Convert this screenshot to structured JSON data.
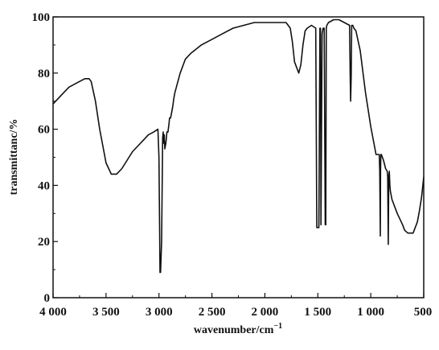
{
  "chart_data": {
    "type": "line",
    "title": "",
    "xlabel": "wavenumber/cm",
    "xlabel_superscript": "−1",
    "ylabel": "transmittanc/%",
    "xlim": [
      4000,
      500
    ],
    "ylim": [
      0,
      100
    ],
    "x_reversed": true,
    "grid": false,
    "legend": "none",
    "x_ticks": [
      4000,
      3500,
      3000,
      2500,
      2000,
      1500,
      1000,
      500
    ],
    "x_tick_labels": [
      "4 000",
      "3 500",
      "3 000",
      "2 500",
      "2 000",
      "1 500",
      "1 000",
      "500"
    ],
    "y_ticks": [
      0,
      20,
      40,
      60,
      80,
      100
    ],
    "y_tick_labels": [
      "0",
      "20",
      "40",
      "60",
      "80",
      "100"
    ],
    "series": [
      {
        "color": "#111111",
        "x": [
          4000,
          3950,
          3900,
          3850,
          3800,
          3750,
          3700,
          3660,
          3640,
          3600,
          3560,
          3500,
          3450,
          3400,
          3350,
          3300,
          3250,
          3200,
          3150,
          3100,
          3050,
          3010,
          3000,
          2990,
          2985,
          2975,
          2965,
          2960,
          2955,
          2950,
          2945,
          2935,
          2925,
          2915,
          2905,
          2900,
          2890,
          2880,
          2870,
          2860,
          2850,
          2800,
          2750,
          2700,
          2600,
          2500,
          2400,
          2300,
          2200,
          2100,
          2000,
          1900,
          1850,
          1800,
          1760,
          1740,
          1720,
          1700,
          1680,
          1660,
          1640,
          1620,
          1600,
          1560,
          1520,
          1510,
          1490,
          1480,
          1475,
          1470,
          1460,
          1450,
          1440,
          1430,
          1425,
          1420,
          1415,
          1400,
          1350,
          1300,
          1250,
          1200,
          1195,
          1190,
          1185,
          1180,
          1170,
          1160,
          1140,
          1100,
          1050,
          1000,
          950,
          920,
          915,
          910,
          908,
          905,
          900,
          880,
          860,
          845,
          840,
          835,
          830,
          825,
          820,
          815,
          800,
          780,
          750,
          700,
          680,
          650,
          620,
          600,
          560,
          540,
          520,
          500
        ],
        "y": [
          69,
          71,
          73,
          75,
          76,
          77,
          78,
          78,
          77,
          70,
          60,
          48,
          44,
          44,
          46,
          49,
          52,
          54,
          56,
          58,
          59,
          60,
          50,
          9,
          9,
          20,
          57,
          59,
          55,
          58,
          53,
          55,
          59,
          59,
          62,
          64,
          64,
          66,
          68,
          71,
          73,
          80,
          85,
          87,
          90,
          92,
          94,
          96,
          97,
          98,
          98,
          98,
          98,
          98,
          96,
          91,
          84,
          82,
          80,
          83,
          90,
          95,
          96,
          97,
          96,
          25,
          25,
          96,
          96,
          26,
          94,
          96,
          96,
          26,
          26,
          96,
          97,
          98,
          99,
          99,
          98,
          97,
          80,
          70,
          79,
          97,
          97,
          96,
          95,
          88,
          73,
          61,
          51,
          51,
          45,
          22,
          45,
          51,
          51,
          49,
          46,
          45,
          43,
          19,
          43,
          45,
          40,
          38,
          35,
          33,
          30,
          26,
          24,
          23,
          23,
          23,
          27,
          31,
          36,
          43
        ]
      }
    ]
  }
}
